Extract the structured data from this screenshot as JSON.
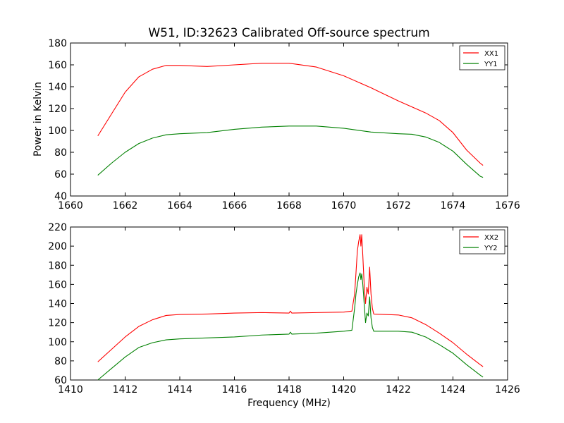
{
  "chart_data": [
    {
      "type": "line",
      "title": "W51, ID:32623 Calibrated Off-source spectrum",
      "xlabel": "",
      "ylabel": "Power in Kelvin",
      "xlim": [
        1660,
        1676
      ],
      "ylim": [
        40,
        180
      ],
      "xticks": [
        1660,
        1662,
        1664,
        1666,
        1668,
        1670,
        1672,
        1674,
        1676
      ],
      "yticks": [
        40,
        60,
        80,
        100,
        120,
        140,
        160,
        180
      ],
      "legend_position": "top-right",
      "series": [
        {
          "name": "XX1",
          "color": "#ff0000",
          "points": [
            [
              1661.0,
              95
            ],
            [
              1661.5,
              115
            ],
            [
              1662.0,
              135
            ],
            [
              1662.5,
              149
            ],
            [
              1663.0,
              156
            ],
            [
              1663.5,
              159.5
            ],
            [
              1664.0,
              159.5
            ],
            [
              1665.0,
              158.5
            ],
            [
              1666.0,
              160
            ],
            [
              1667.0,
              161.5
            ],
            [
              1668.0,
              161.5
            ],
            [
              1669.0,
              158
            ],
            [
              1670.0,
              150
            ],
            [
              1671.0,
              139
            ],
            [
              1672.0,
              127
            ],
            [
              1673.0,
              116
            ],
            [
              1673.5,
              109
            ],
            [
              1674.0,
              98
            ],
            [
              1674.5,
              82
            ],
            [
              1675.0,
              70
            ],
            [
              1675.1,
              68
            ]
          ]
        },
        {
          "name": "YY1",
          "color": "#008000",
          "points": [
            [
              1661.0,
              59
            ],
            [
              1661.5,
              70
            ],
            [
              1662.0,
              80
            ],
            [
              1662.5,
              88
            ],
            [
              1663.0,
              93
            ],
            [
              1663.5,
              96
            ],
            [
              1664.0,
              97
            ],
            [
              1665.0,
              98
            ],
            [
              1666.0,
              101
            ],
            [
              1667.0,
              103
            ],
            [
              1668.0,
              104
            ],
            [
              1669.0,
              104
            ],
            [
              1670.0,
              102
            ],
            [
              1671.0,
              98.5
            ],
            [
              1672.0,
              97
            ],
            [
              1672.5,
              96.5
            ],
            [
              1673.0,
              94
            ],
            [
              1673.5,
              89
            ],
            [
              1674.0,
              81
            ],
            [
              1674.5,
              69
            ],
            [
              1675.0,
              58
            ],
            [
              1675.1,
              57
            ]
          ]
        }
      ]
    },
    {
      "type": "line",
      "title": "",
      "xlabel": "Frequency (MHz)",
      "ylabel": "",
      "xlim": [
        1410,
        1426
      ],
      "ylim": [
        60,
        220
      ],
      "xticks": [
        1410,
        1412,
        1414,
        1416,
        1418,
        1420,
        1422,
        1424,
        1426
      ],
      "yticks": [
        60,
        80,
        100,
        120,
        140,
        160,
        180,
        200,
        220
      ],
      "legend_position": "top-right",
      "series": [
        {
          "name": "XX2",
          "color": "#ff0000",
          "points": [
            [
              1411.0,
              79
            ],
            [
              1411.5,
              92
            ],
            [
              1412.0,
              105
            ],
            [
              1412.5,
              116
            ],
            [
              1413.0,
              123
            ],
            [
              1413.5,
              127.5
            ],
            [
              1414.0,
              128.5
            ],
            [
              1415.0,
              129
            ],
            [
              1416.0,
              130
            ],
            [
              1417.0,
              130.5
            ],
            [
              1418.0,
              130
            ],
            [
              1418.05,
              132
            ],
            [
              1418.1,
              130
            ],
            [
              1419.0,
              130.5
            ],
            [
              1420.0,
              131
            ],
            [
              1420.3,
              132
            ],
            [
              1420.4,
              150
            ],
            [
              1420.45,
              172
            ],
            [
              1420.5,
              195
            ],
            [
              1420.55,
              205
            ],
            [
              1420.6,
              212
            ],
            [
              1420.63,
              200
            ],
            [
              1420.66,
              212
            ],
            [
              1420.7,
              190
            ],
            [
              1420.75,
              160
            ],
            [
              1420.8,
              140
            ],
            [
              1420.85,
              157
            ],
            [
              1420.9,
              150
            ],
            [
              1420.95,
              178
            ],
            [
              1421.0,
              150
            ],
            [
              1421.05,
              135
            ],
            [
              1421.1,
              129
            ],
            [
              1421.5,
              128.5
            ],
            [
              1422.0,
              128
            ],
            [
              1422.5,
              125
            ],
            [
              1423.0,
              118
            ],
            [
              1423.5,
              109
            ],
            [
              1424.0,
              99
            ],
            [
              1424.5,
              87
            ],
            [
              1425.0,
              76
            ],
            [
              1425.1,
              74
            ]
          ]
        },
        {
          "name": "YY2",
          "color": "#008000",
          "points": [
            [
              1411.0,
              60
            ],
            [
              1411.5,
              72
            ],
            [
              1412.0,
              84
            ],
            [
              1412.5,
              94
            ],
            [
              1413.0,
              99
            ],
            [
              1413.5,
              102
            ],
            [
              1414.0,
              103
            ],
            [
              1415.0,
              104
            ],
            [
              1416.0,
              105
            ],
            [
              1417.0,
              107
            ],
            [
              1418.0,
              108
            ],
            [
              1418.05,
              110
            ],
            [
              1418.1,
              108
            ],
            [
              1419.0,
              109
            ],
            [
              1420.0,
              111
            ],
            [
              1420.3,
              112
            ],
            [
              1420.4,
              135
            ],
            [
              1420.45,
              150
            ],
            [
              1420.5,
              160
            ],
            [
              1420.55,
              168
            ],
            [
              1420.6,
              172
            ],
            [
              1420.63,
              165
            ],
            [
              1420.66,
              171
            ],
            [
              1420.7,
              160
            ],
            [
              1420.75,
              140
            ],
            [
              1420.8,
              120
            ],
            [
              1420.85,
              130
            ],
            [
              1420.9,
              127
            ],
            [
              1420.95,
              147
            ],
            [
              1421.0,
              125
            ],
            [
              1421.05,
              115
            ],
            [
              1421.1,
              111
            ],
            [
              1421.5,
              111
            ],
            [
              1422.0,
              111
            ],
            [
              1422.5,
              110
            ],
            [
              1423.0,
              105
            ],
            [
              1423.5,
              97
            ],
            [
              1424.0,
              88
            ],
            [
              1424.5,
              76
            ],
            [
              1425.0,
              65
            ],
            [
              1425.1,
              63
            ]
          ]
        }
      ]
    }
  ]
}
